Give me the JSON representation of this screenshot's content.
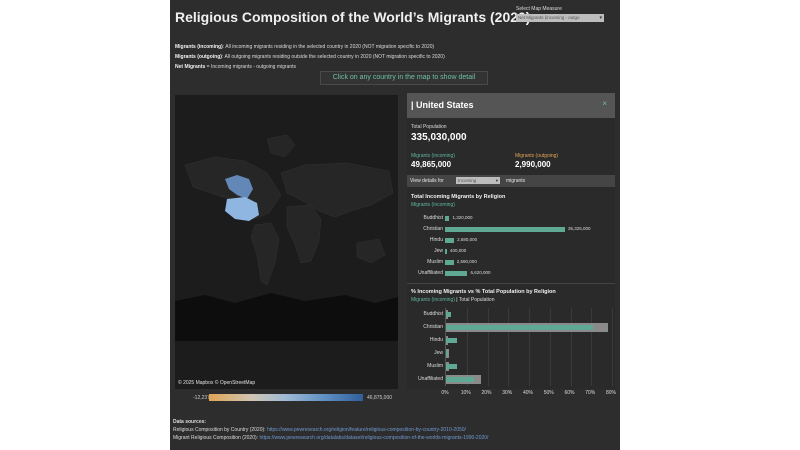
{
  "header": {
    "title": "Religious Composition of the World’s Migrants (2020)",
    "select_measure_label": "Select Map Measure",
    "select_measure_value": "Net Migrants (incoming - outgo"
  },
  "definitions": [
    {
      "term": "Migrants (incoming)",
      "text": ": All incoming migrants residing in the selected country in 2020 (NOT migration specific to 2020)"
    },
    {
      "term": "Migrants (outgoing)",
      "text": ": All outgoing migrants residing outside the selected country in 2020 (NOT migration specific to 2020)"
    },
    {
      "term": "Net Migrants",
      "text": " = Incoming migrants - outgoing migrants"
    }
  ],
  "click_hint": "Click on any country in the map to show detail",
  "map": {
    "credit": "© 2025 Mapbox  © OpenStreetMap",
    "legend_min": "-12,237,500",
    "legend_max": "46,875,000",
    "colors": {
      "negative": "#e0a455",
      "positive": "#2f5f9c",
      "highlight": "#8fb6e0"
    }
  },
  "sources": {
    "heading": "Data sources:",
    "items": [
      {
        "label": "Religious Composition by Country (2020): ",
        "link": "https://www.pewresearch.org/religion/feature/religious-composition-by-country-2010-2050/"
      },
      {
        "label": "Migrant Religious Composition (2020): ",
        "link": "https://www.pewresearch.org/datalabs/dataset/religious-composition-of-the-worlds-migrants-1990-2020/"
      }
    ]
  },
  "details": {
    "country": "| United States",
    "close_icon": "×",
    "total_population_label": "Total Population",
    "total_population": "335,030,000",
    "incoming_label": "Migrants (incoming)",
    "incoming_value": "49,865,000",
    "outgoing_label": "Migrants (outgoing)",
    "outgoing_value": "2,990,000",
    "view_details_for": "View details for",
    "view_select": "Incoming",
    "view_suffix": "migrants"
  },
  "chart_data": [
    {
      "type": "bar",
      "title": "Total Incoming Migrants by Religion",
      "subtitle": "Migrants (incoming)",
      "categories": [
        "Buddhist",
        "Christian",
        "Hindu",
        "Jew",
        "Muslim",
        "Unaffiliated"
      ],
      "values": [
        1320000,
        35325000,
        2680000,
        400000,
        2590000,
        6620000
      ],
      "labels": [
        "1,320,000",
        "35,325,000",
        "2,680,000",
        "400,000",
        "2,590,000",
        "6,620,000"
      ]
    },
    {
      "type": "bar",
      "title": "% Incoming Migrants vs % Total Population by Religion",
      "subtitle_series_1": "Migrants (incoming)",
      "subtitle_sep": " | ",
      "subtitle_series_2": "Total Population",
      "categories": [
        "Buddhist",
        "Christian",
        "Hindu",
        "Jew",
        "Muslim",
        "Unaffiliated"
      ],
      "series": [
        {
          "name": "Migrants (incoming)",
          "values": [
            2.6,
            70.8,
            5.4,
            0.8,
            5.2,
            13.3
          ],
          "color": "#5fa994"
        },
        {
          "name": "Total Population",
          "values": [
            1.2,
            78.0,
            1.0,
            1.6,
            1.3,
            17.0
          ],
          "color": "#8a8a8a"
        }
      ],
      "xlim": [
        0,
        80
      ],
      "ticks": [
        "0%",
        "10%",
        "20%",
        "30%",
        "40%",
        "50%",
        "60%",
        "70%",
        "80%"
      ]
    }
  ]
}
